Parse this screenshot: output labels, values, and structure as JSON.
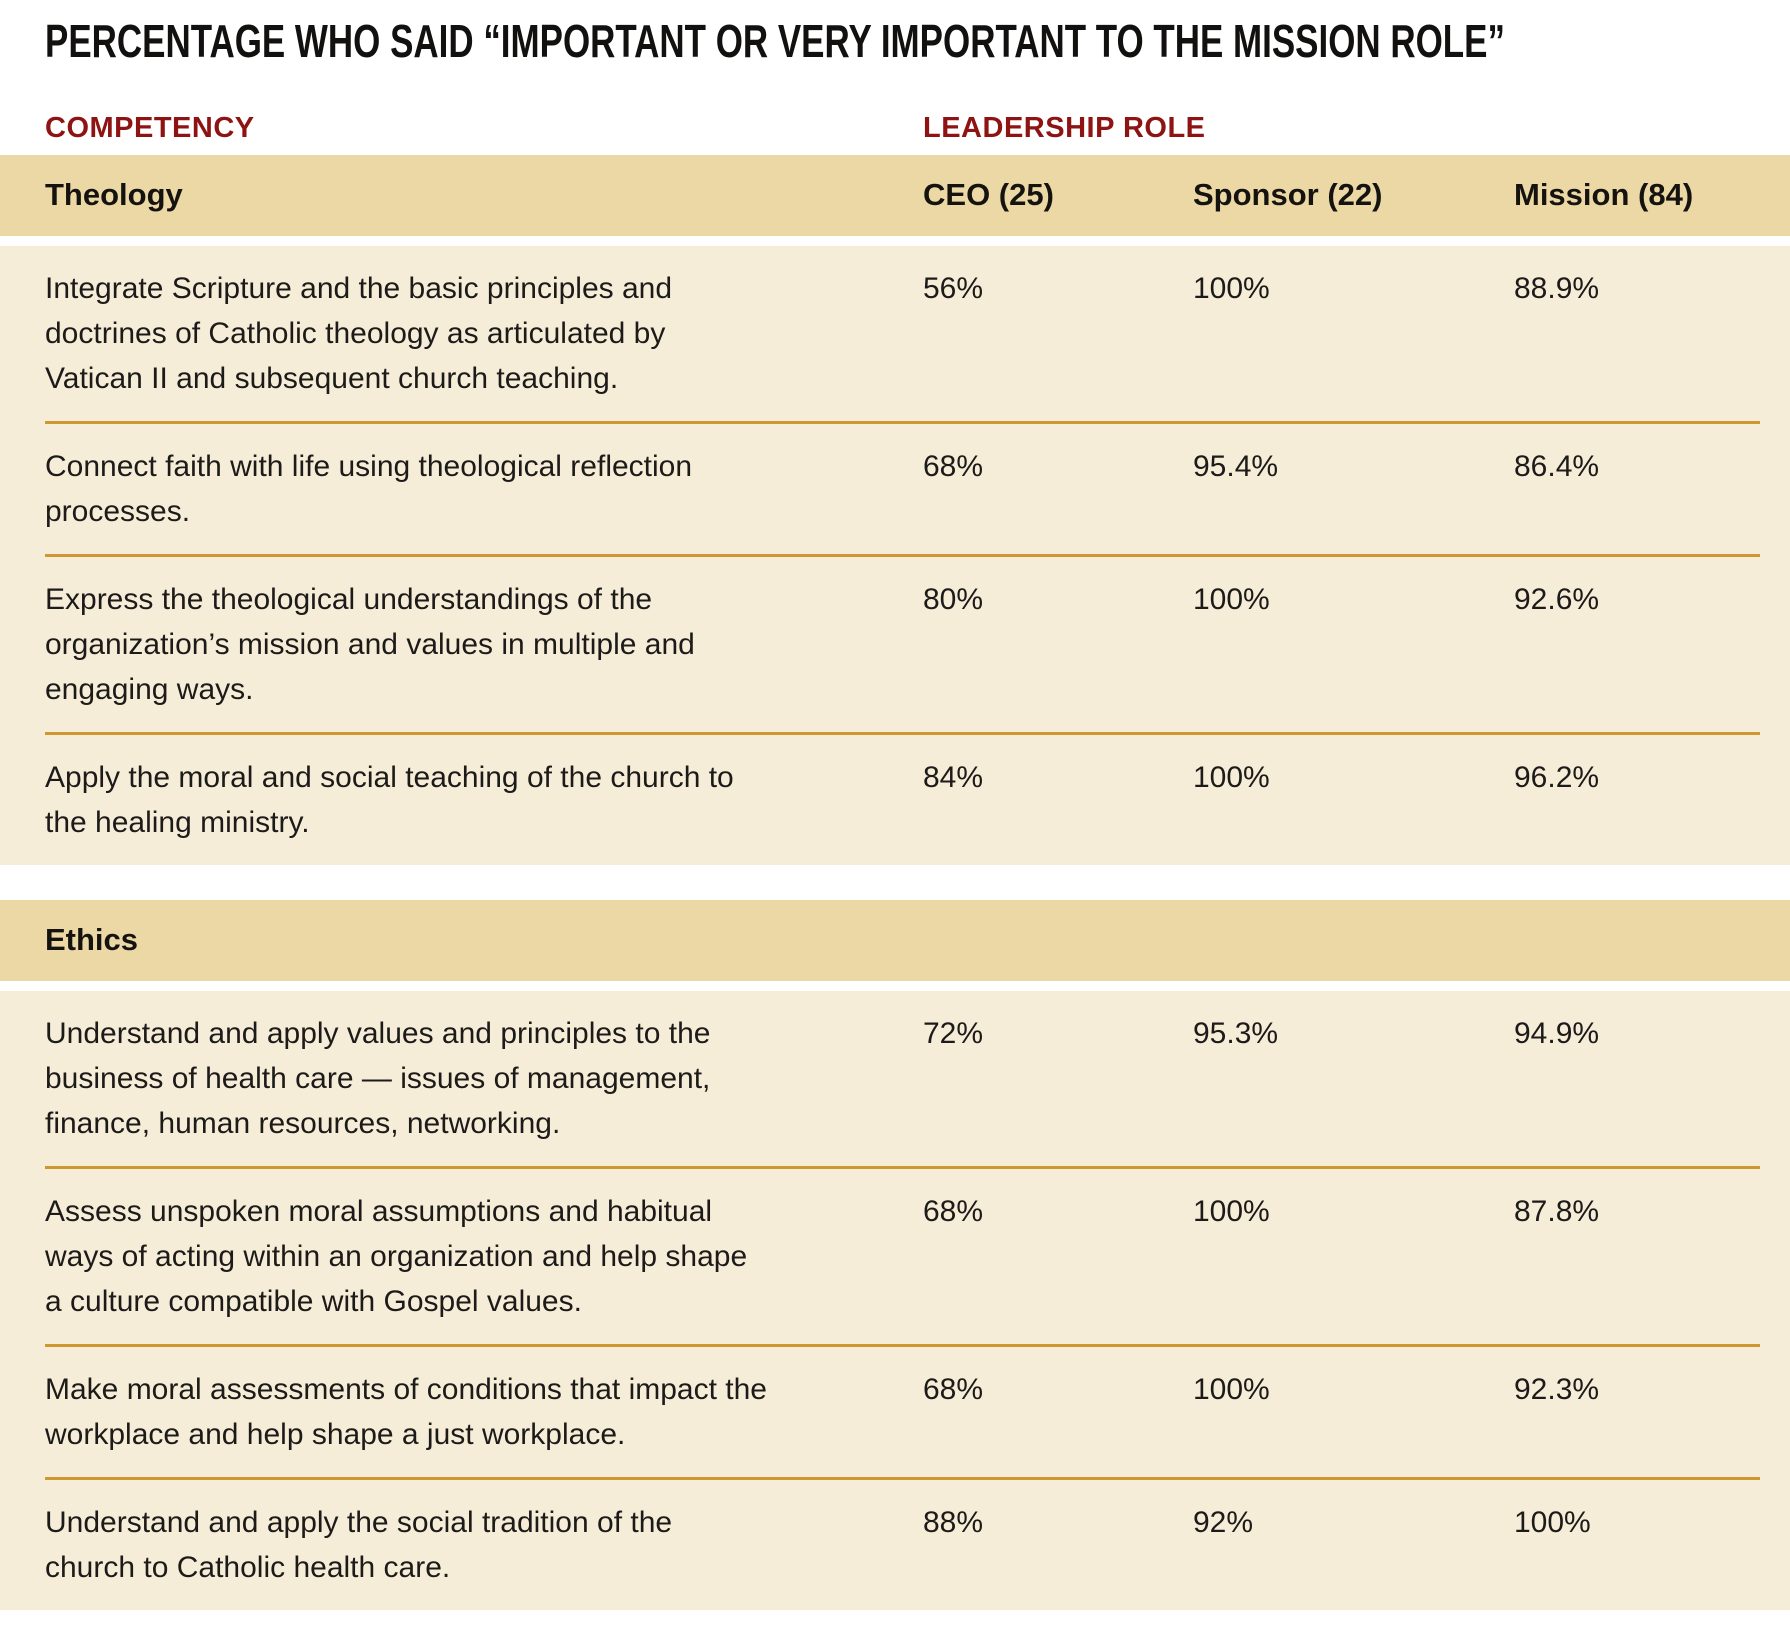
{
  "title": "PERCENTAGE WHO SAID “IMPORTANT OR VERY IMPORTANT TO THE MISSION ROLE”",
  "column_headers": {
    "competency": "COMPETENCY",
    "leadership": "LEADERSHIP ROLE"
  },
  "roles": [
    "CEO (25)",
    "Sponsor (22)",
    "Mission (84)"
  ],
  "sections": [
    {
      "name": "Theology",
      "rows": [
        {
          "competency": "Integrate Scripture and the basic principles and doctrines of Catholic theology as articulated by Vatican II and subsequent church teaching.",
          "values": [
            "56%",
            "100%",
            "88.9%"
          ]
        },
        {
          "competency": "Connect faith with life using theological reflection processes.",
          "values": [
            "68%",
            "95.4%",
            "86.4%"
          ]
        },
        {
          "competency": "Express the theological understandings of the organization’s mission and values in multiple and engaging ways.",
          "values": [
            "80%",
            "100%",
            "92.6%"
          ]
        },
        {
          "competency": "Apply the moral and social teaching of the church to the healing ministry.",
          "values": [
            "84%",
            "100%",
            "96.2%"
          ]
        }
      ]
    },
    {
      "name": "Ethics",
      "rows": [
        {
          "competency": "Understand and apply values and principles to the business of health care — issues of management, finance, human resources, networking.",
          "values": [
            "72%",
            "95.3%",
            "94.9%"
          ]
        },
        {
          "competency": "Assess unspoken moral assumptions and habitual ways of acting within an organization and help shape a culture compatible with Gospel values.",
          "values": [
            "68%",
            "100%",
            "87.8%"
          ]
        },
        {
          "competency": "Make moral assessments of conditions that impact the workplace and help shape a just workplace.",
          "values": [
            "68%",
            "100%",
            "92.3%"
          ]
        },
        {
          "competency": "Understand and apply the social tradition of the church to Catholic health care.",
          "values": [
            "88%",
            "92%",
            "100%"
          ]
        }
      ]
    }
  ],
  "colors": {
    "label_maroon": "#8e1414",
    "tan_header_row": "#ecd8a5",
    "body_beige": "#f6edd8",
    "rule_gold": "#cf9730",
    "text_black": "#1d1b19"
  },
  "chart_data": {
    "type": "table",
    "title": "PERCENTAGE WHO SAID “IMPORTANT OR VERY IMPORTANT TO THE MISSION ROLE”",
    "column_group_labels": [
      "COMPETENCY",
      "LEADERSHIP ROLE"
    ],
    "columns": [
      "Competency",
      "CEO (25)",
      "Sponsor (22)",
      "Mission (84)"
    ],
    "groups": [
      {
        "group": "Theology",
        "rows": [
          {
            "competency": "Integrate Scripture and the basic principles and doctrines of Catholic theology as articulated by Vatican II and subsequent church teaching.",
            "ceo_pct": 56,
            "sponsor_pct": 100,
            "mission_pct": 88.9
          },
          {
            "competency": "Connect faith with life using theological reflection processes.",
            "ceo_pct": 68,
            "sponsor_pct": 95.4,
            "mission_pct": 86.4
          },
          {
            "competency": "Express the theological understandings of the organization’s mission and values in multiple and engaging ways.",
            "ceo_pct": 80,
            "sponsor_pct": 100,
            "mission_pct": 92.6
          },
          {
            "competency": "Apply the moral and social teaching of the church to the healing ministry.",
            "ceo_pct": 84,
            "sponsor_pct": 100,
            "mission_pct": 96.2
          }
        ]
      },
      {
        "group": "Ethics",
        "rows": [
          {
            "competency": "Understand and apply values and principles to the business of health care — issues of management, finance, human resources, networking.",
            "ceo_pct": 72,
            "sponsor_pct": 95.3,
            "mission_pct": 94.9
          },
          {
            "competency": "Assess unspoken moral assumptions and habitual ways of acting within an organization and help shape a culture compatible with Gospel values.",
            "ceo_pct": 68,
            "sponsor_pct": 100,
            "mission_pct": 87.8
          },
          {
            "competency": "Make moral assessments of conditions that impact the workplace and help shape a just workplace.",
            "ceo_pct": 68,
            "sponsor_pct": 100,
            "mission_pct": 92.3
          },
          {
            "competency": "Understand and apply the social tradition of the church to Catholic health care.",
            "ceo_pct": 88,
            "sponsor_pct": 92,
            "mission_pct": 100
          }
        ]
      }
    ]
  }
}
